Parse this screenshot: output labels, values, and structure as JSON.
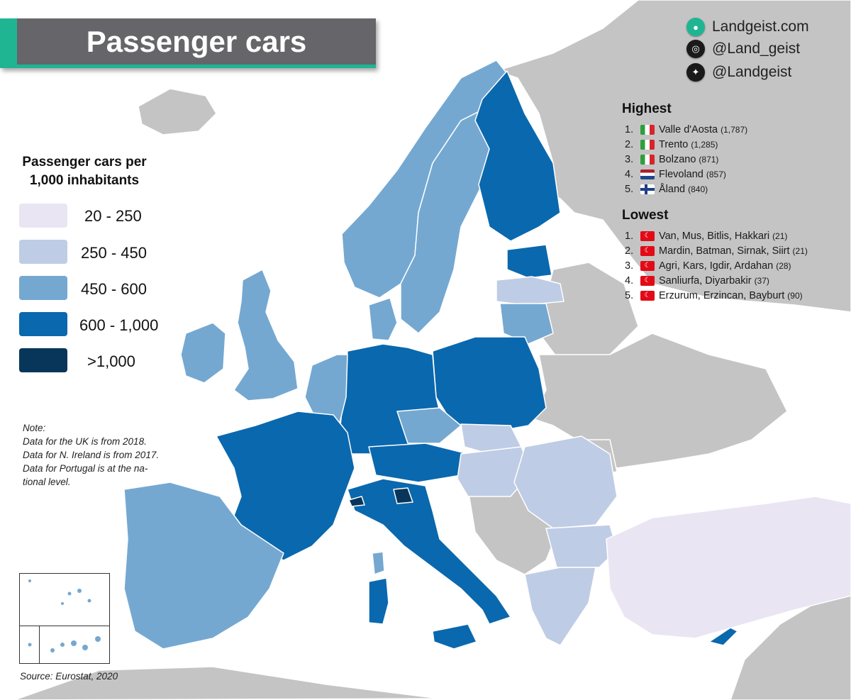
{
  "title": "Passenger cars",
  "brand": {
    "website": "Landgeist.com",
    "instagram": "@Land_geist",
    "twitter": "@Landgeist"
  },
  "legend": {
    "title_line1": "Passenger cars per",
    "title_line2": "1,000 inhabitants",
    "items": [
      {
        "label": "20  - 250",
        "color": "#e9e5f3"
      },
      {
        "label": "250 - 450",
        "color": "#bfcce5"
      },
      {
        "label": "450 - 600",
        "color": "#74a8d1"
      },
      {
        "label": "600 - 1,000",
        "color": "#0a68ae"
      },
      {
        "label": ">1,000",
        "color": "#07365a"
      }
    ]
  },
  "colors": {
    "no_data": "#c4c4c4",
    "water": "#ffffff",
    "border": "#ffffff",
    "accent": "#1fb592",
    "title_bg": "#666569"
  },
  "note": {
    "heading": "Note:",
    "lines": "Data for the UK is from 2018.\nData for N. Ireland is from 2017.\nData for Portugal is at the na-\ntional level."
  },
  "source": "Source: Eurostat, 2020",
  "highest": {
    "heading": "Highest",
    "items": [
      {
        "rank": "1.",
        "flag": "it",
        "name": "Valle d'Aosta",
        "value": "(1,787)"
      },
      {
        "rank": "2.",
        "flag": "it",
        "name": "Trento",
        "value": "(1,285)"
      },
      {
        "rank": "3.",
        "flag": "it",
        "name": "Bolzano",
        "value": "(871)"
      },
      {
        "rank": "4.",
        "flag": "nl",
        "name": "Flevoland",
        "value": "(857)"
      },
      {
        "rank": "5.",
        "flag": "fi",
        "name": "Åland",
        "value": "(840)"
      }
    ]
  },
  "lowest": {
    "heading": "Lowest",
    "items": [
      {
        "rank": "1.",
        "flag": "tr",
        "name": "Van, Mus, Bitlis, Hakkari",
        "value": "(21)"
      },
      {
        "rank": "2.",
        "flag": "tr",
        "name": "Mardin, Batman, Sirnak, Siirt",
        "value": "(21)"
      },
      {
        "rank": "3.",
        "flag": "tr",
        "name": "Agri, Kars, Igdir, Ardahan",
        "value": "(28)"
      },
      {
        "rank": "4.",
        "flag": "tr",
        "name": "Sanliurfa, Diyarbakir",
        "value": "(37)"
      },
      {
        "rank": "5.",
        "flag": "tr",
        "name": "Erzurum, Erzincan, Bayburt",
        "value": "(90)"
      }
    ]
  },
  "regions": [
    {
      "name": "Iceland",
      "cls": "nodata"
    },
    {
      "name": "Russia",
      "cls": "nodata"
    },
    {
      "name": "Belarus",
      "cls": "nodata"
    },
    {
      "name": "Ukraine",
      "cls": "nodata"
    },
    {
      "name": "Moldova",
      "cls": "nodata"
    },
    {
      "name": "Western Balkans",
      "cls": "nodata"
    },
    {
      "name": "Middle East",
      "cls": "nodata"
    },
    {
      "name": "North Africa",
      "cls": "nodata"
    },
    {
      "name": "Ireland",
      "cls": 2
    },
    {
      "name": "Great Britain",
      "cls": 2
    },
    {
      "name": "Norway",
      "cls": 2
    },
    {
      "name": "Sweden",
      "cls": 2
    },
    {
      "name": "Finland",
      "cls": 3
    },
    {
      "name": "Estonia",
      "cls": 3
    },
    {
      "name": "Latvia",
      "cls": 1
    },
    {
      "name": "Lithuania",
      "cls": 2
    },
    {
      "name": "Poland",
      "cls": 3
    },
    {
      "name": "Germany",
      "cls": 3
    },
    {
      "name": "Denmark",
      "cls": 2
    },
    {
      "name": "Benelux",
      "cls": 2
    },
    {
      "name": "France",
      "cls": 3
    },
    {
      "name": "Iberia",
      "cls": 2
    },
    {
      "name": "Czechia",
      "cls": 2
    },
    {
      "name": "Slovakia",
      "cls": 1
    },
    {
      "name": "Austria",
      "cls": 3
    },
    {
      "name": "Hungary",
      "cls": 1
    },
    {
      "name": "Romania",
      "cls": 1
    },
    {
      "name": "Bulgaria",
      "cls": 1
    },
    {
      "name": "Greece",
      "cls": 1
    },
    {
      "name": "Turkey",
      "cls": 0
    },
    {
      "name": "Italy",
      "cls": 3
    },
    {
      "name": "Sardinia",
      "cls": 3
    },
    {
      "name": "Sicily",
      "cls": 3
    },
    {
      "name": "Corsica",
      "cls": 2
    },
    {
      "name": "Cyprus",
      "cls": 3
    },
    {
      "name": "Valle d'Aosta",
      "cls": 4
    },
    {
      "name": "Trento",
      "cls": 4
    }
  ]
}
